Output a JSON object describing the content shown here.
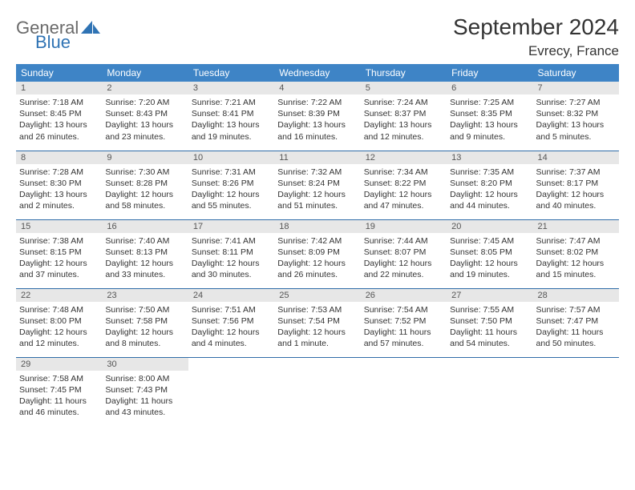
{
  "brand": {
    "word1": "General",
    "word2": "Blue",
    "color_gray": "#6a6a6a",
    "color_blue": "#2f73b4"
  },
  "title": "September 2024",
  "location": "Evrecy, France",
  "header_bg": "#3e84c6",
  "header_text_color": "#ffffff",
  "daynum_bg": "#e7e7e7",
  "row_border_color": "#2f6ca8",
  "text_color": "#333333",
  "body_fontsize": 10.5,
  "weekdays": [
    "Sunday",
    "Monday",
    "Tuesday",
    "Wednesday",
    "Thursday",
    "Friday",
    "Saturday"
  ],
  "weeks": [
    [
      {
        "n": "1",
        "sunrise": "7:18 AM",
        "sunset": "8:45 PM",
        "daylight": "13 hours and 26 minutes."
      },
      {
        "n": "2",
        "sunrise": "7:20 AM",
        "sunset": "8:43 PM",
        "daylight": "13 hours and 23 minutes."
      },
      {
        "n": "3",
        "sunrise": "7:21 AM",
        "sunset": "8:41 PM",
        "daylight": "13 hours and 19 minutes."
      },
      {
        "n": "4",
        "sunrise": "7:22 AM",
        "sunset": "8:39 PM",
        "daylight": "13 hours and 16 minutes."
      },
      {
        "n": "5",
        "sunrise": "7:24 AM",
        "sunset": "8:37 PM",
        "daylight": "13 hours and 12 minutes."
      },
      {
        "n": "6",
        "sunrise": "7:25 AM",
        "sunset": "8:35 PM",
        "daylight": "13 hours and 9 minutes."
      },
      {
        "n": "7",
        "sunrise": "7:27 AM",
        "sunset": "8:32 PM",
        "daylight": "13 hours and 5 minutes."
      }
    ],
    [
      {
        "n": "8",
        "sunrise": "7:28 AM",
        "sunset": "8:30 PM",
        "daylight": "13 hours and 2 minutes."
      },
      {
        "n": "9",
        "sunrise": "7:30 AM",
        "sunset": "8:28 PM",
        "daylight": "12 hours and 58 minutes."
      },
      {
        "n": "10",
        "sunrise": "7:31 AM",
        "sunset": "8:26 PM",
        "daylight": "12 hours and 55 minutes."
      },
      {
        "n": "11",
        "sunrise": "7:32 AM",
        "sunset": "8:24 PM",
        "daylight": "12 hours and 51 minutes."
      },
      {
        "n": "12",
        "sunrise": "7:34 AM",
        "sunset": "8:22 PM",
        "daylight": "12 hours and 47 minutes."
      },
      {
        "n": "13",
        "sunrise": "7:35 AM",
        "sunset": "8:20 PM",
        "daylight": "12 hours and 44 minutes."
      },
      {
        "n": "14",
        "sunrise": "7:37 AM",
        "sunset": "8:17 PM",
        "daylight": "12 hours and 40 minutes."
      }
    ],
    [
      {
        "n": "15",
        "sunrise": "7:38 AM",
        "sunset": "8:15 PM",
        "daylight": "12 hours and 37 minutes."
      },
      {
        "n": "16",
        "sunrise": "7:40 AM",
        "sunset": "8:13 PM",
        "daylight": "12 hours and 33 minutes."
      },
      {
        "n": "17",
        "sunrise": "7:41 AM",
        "sunset": "8:11 PM",
        "daylight": "12 hours and 30 minutes."
      },
      {
        "n": "18",
        "sunrise": "7:42 AM",
        "sunset": "8:09 PM",
        "daylight": "12 hours and 26 minutes."
      },
      {
        "n": "19",
        "sunrise": "7:44 AM",
        "sunset": "8:07 PM",
        "daylight": "12 hours and 22 minutes."
      },
      {
        "n": "20",
        "sunrise": "7:45 AM",
        "sunset": "8:05 PM",
        "daylight": "12 hours and 19 minutes."
      },
      {
        "n": "21",
        "sunrise": "7:47 AM",
        "sunset": "8:02 PM",
        "daylight": "12 hours and 15 minutes."
      }
    ],
    [
      {
        "n": "22",
        "sunrise": "7:48 AM",
        "sunset": "8:00 PM",
        "daylight": "12 hours and 12 minutes."
      },
      {
        "n": "23",
        "sunrise": "7:50 AM",
        "sunset": "7:58 PM",
        "daylight": "12 hours and 8 minutes."
      },
      {
        "n": "24",
        "sunrise": "7:51 AM",
        "sunset": "7:56 PM",
        "daylight": "12 hours and 4 minutes."
      },
      {
        "n": "25",
        "sunrise": "7:53 AM",
        "sunset": "7:54 PM",
        "daylight": "12 hours and 1 minute."
      },
      {
        "n": "26",
        "sunrise": "7:54 AM",
        "sunset": "7:52 PM",
        "daylight": "11 hours and 57 minutes."
      },
      {
        "n": "27",
        "sunrise": "7:55 AM",
        "sunset": "7:50 PM",
        "daylight": "11 hours and 54 minutes."
      },
      {
        "n": "28",
        "sunrise": "7:57 AM",
        "sunset": "7:47 PM",
        "daylight": "11 hours and 50 minutes."
      }
    ],
    [
      {
        "n": "29",
        "sunrise": "7:58 AM",
        "sunset": "7:45 PM",
        "daylight": "11 hours and 46 minutes."
      },
      {
        "n": "30",
        "sunrise": "8:00 AM",
        "sunset": "7:43 PM",
        "daylight": "11 hours and 43 minutes."
      },
      null,
      null,
      null,
      null,
      null
    ]
  ],
  "labels": {
    "sunrise": "Sunrise: ",
    "sunset": "Sunset: ",
    "daylight": "Daylight: "
  }
}
